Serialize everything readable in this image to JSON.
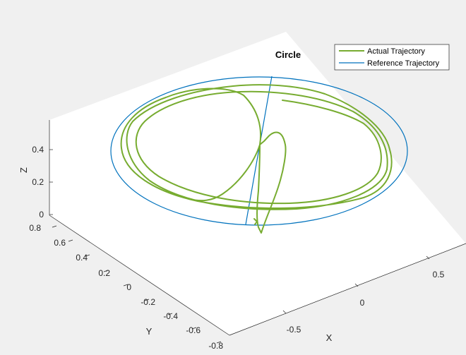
{
  "chart_data": {
    "type": "line",
    "projection": "3d",
    "title": "Circle",
    "xlabel": "X",
    "ylabel": "Y",
    "zlabel": "Z",
    "x_ticks": [
      "-0.5",
      "0",
      "0.5"
    ],
    "y_ticks": [
      "-0.8",
      "-0.6",
      "-0.4",
      "-0.2",
      "0",
      "0.2",
      "0.4",
      "0.6",
      "0.8"
    ],
    "z_ticks": [
      "0",
      "0.2",
      "0.4"
    ],
    "legend": {
      "position": "top-right",
      "entries": [
        {
          "label": "Actual Trajectory",
          "color": "#77ac30"
        },
        {
          "label": "Reference Trajectory",
          "color": "#0072bd"
        }
      ]
    },
    "grid": false,
    "series": [
      {
        "name": "Reference Trajectory",
        "color": "#0072bd",
        "x": [
          0.0,
          0.75,
          0.0,
          -0.75,
          0.0,
          0.0,
          0.0
        ],
        "y": [
          0.0,
          0.0,
          0.75,
          0.0,
          -0.75,
          0.0,
          0.0
        ],
        "z": [
          0.4,
          0.4,
          0.4,
          0.4,
          0.4,
          0.4,
          0.0
        ]
      },
      {
        "name": "Actual Trajectory",
        "color": "#77ac30",
        "x": [
          0.0,
          0.65,
          0.05,
          -0.68,
          0.0,
          0.7,
          0.0,
          -0.72,
          0.0,
          0.6,
          -0.15,
          -0.55,
          0.05
        ],
        "y": [
          0.0,
          0.05,
          0.7,
          0.02,
          -0.7,
          0.0,
          0.72,
          0.0,
          -0.72,
          -0.05,
          0.6,
          0.05,
          -0.55
        ],
        "z": [
          0.05,
          0.38,
          0.4,
          0.39,
          0.4,
          0.4,
          0.41,
          0.4,
          0.4,
          0.39,
          0.38,
          0.36,
          0.3
        ]
      }
    ]
  }
}
